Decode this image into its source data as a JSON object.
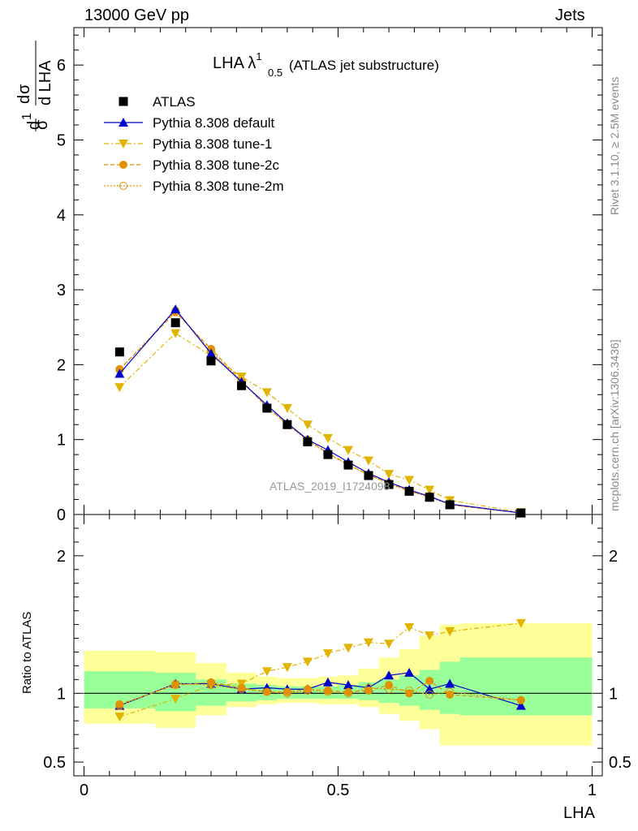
{
  "header": {
    "energy": "13000 GeV pp",
    "process": "Jets"
  },
  "side": {
    "rivet": "Rivet 3.1.10, ≥ 2.5M events",
    "source": "mcplots.cern.ch [arXiv:1306.3436]"
  },
  "chart_data": [
    {
      "type": "line",
      "title": "LHA λ",
      "title_sup": "1",
      "title_sub": "0.5",
      "subtitle": "(ATLAS jet substructure)",
      "watermark": "ATLAS_2019_I1724098",
      "xlim": [
        -0.02,
        1.02
      ],
      "ylim": [
        0,
        6.5
      ],
      "yticks": [
        "0",
        "1",
        "2",
        "3",
        "4",
        "5",
        "6"
      ],
      "ylabel": "1/σ dσ/d LHA",
      "legend_position": "top-left",
      "series": [
        {
          "name": "ATLAS",
          "color": "#000000",
          "x": [
            0.07,
            0.18,
            0.25,
            0.31,
            0.36,
            0.4,
            0.44,
            0.48,
            0.52,
            0.56,
            0.6,
            0.64,
            0.68,
            0.72,
            0.86
          ],
          "y": [
            2.17,
            2.56,
            2.05,
            1.72,
            1.42,
            1.2,
            0.97,
            0.8,
            0.66,
            0.52,
            0.4,
            0.31,
            0.23,
            0.13,
            0.02
          ]
        },
        {
          "name": "Pythia 8.308 default",
          "color": "#0000cc",
          "x": [
            0.07,
            0.18,
            0.25,
            0.31,
            0.36,
            0.4,
            0.44,
            0.48,
            0.52,
            0.56,
            0.6,
            0.64,
            0.68,
            0.72,
            0.86
          ],
          "y": [
            1.88,
            2.74,
            2.15,
            1.77,
            1.46,
            1.22,
            1.0,
            0.86,
            0.7,
            0.55,
            0.43,
            0.33,
            0.24,
            0.14,
            0.02
          ]
        },
        {
          "name": "Pythia 8.308 tune-1",
          "color": "#e0b400",
          "x": [
            0.07,
            0.18,
            0.25,
            0.31,
            0.36,
            0.4,
            0.44,
            0.48,
            0.52,
            0.56,
            0.6,
            0.64,
            0.68,
            0.72,
            0.86
          ],
          "y": [
            1.7,
            2.42,
            2.12,
            1.84,
            1.63,
            1.42,
            1.2,
            1.02,
            0.86,
            0.72,
            0.54,
            0.46,
            0.33,
            0.19,
            0.03
          ]
        },
        {
          "name": "Pythia 8.308 tune-2c",
          "color": "#e09000",
          "x": [
            0.07,
            0.18,
            0.25,
            0.31,
            0.36,
            0.4,
            0.44,
            0.48,
            0.52,
            0.56,
            0.6,
            0.64,
            0.68,
            0.72,
            0.86
          ],
          "y": [
            1.94,
            2.7,
            2.21,
            1.79,
            1.43,
            1.21,
            1.0,
            0.82,
            0.67,
            0.53,
            0.42,
            0.31,
            0.25,
            0.13,
            0.02
          ]
        },
        {
          "name": "Pythia 8.308 tune-2m",
          "color": "#e09000",
          "x": [
            0.07,
            0.18,
            0.25,
            0.31,
            0.36,
            0.4,
            0.44,
            0.48,
            0.52,
            0.56,
            0.6,
            0.64,
            0.68,
            0.72,
            0.86
          ],
          "y": [
            1.93,
            2.72,
            2.18,
            1.78,
            1.43,
            1.2,
            0.99,
            0.81,
            0.66,
            0.53,
            0.41,
            0.31,
            0.23,
            0.13,
            0.02
          ]
        }
      ]
    },
    {
      "type": "line",
      "ylabel": "Ratio to ATLAS",
      "xlabel": "LHA",
      "xlim": [
        -0.02,
        1.02
      ],
      "ylim": [
        0.4,
        2.3
      ],
      "xticks": [
        "0",
        "0.5",
        "1"
      ],
      "yticks": [
        "0.5",
        "1",
        "2"
      ],
      "uncertainty_bands": {
        "edges": [
          0.0,
          0.14,
          0.22,
          0.28,
          0.34,
          0.38,
          0.42,
          0.46,
          0.5,
          0.54,
          0.58,
          0.62,
          0.66,
          0.7,
          0.74,
          1.0
        ],
        "inner_lo": [
          0.89,
          0.87,
          0.91,
          0.94,
          0.95,
          0.96,
          0.96,
          0.96,
          0.96,
          0.95,
          0.93,
          0.91,
          0.88,
          0.85,
          0.84
        ],
        "inner_hi": [
          1.16,
          1.15,
          1.1,
          1.07,
          1.06,
          1.05,
          1.05,
          1.05,
          1.06,
          1.08,
          1.1,
          1.13,
          1.17,
          1.23,
          1.26
        ],
        "outer_lo": [
          0.78,
          0.75,
          0.84,
          0.9,
          0.92,
          0.93,
          0.93,
          0.92,
          0.92,
          0.9,
          0.85,
          0.8,
          0.74,
          0.62,
          0.62
        ],
        "outer_hi": [
          1.31,
          1.3,
          1.22,
          1.15,
          1.12,
          1.11,
          1.11,
          1.12,
          1.13,
          1.18,
          1.26,
          1.32,
          1.42,
          1.5,
          1.51
        ],
        "inner_color": "#99ff99",
        "outer_color": "#ffff99"
      },
      "series": [
        {
          "name": "Pythia 8.308 default",
          "color": "#0000cc",
          "x": [
            0.07,
            0.18,
            0.25,
            0.31,
            0.36,
            0.4,
            0.44,
            0.48,
            0.52,
            0.56,
            0.6,
            0.64,
            0.68,
            0.72,
            0.86
          ],
          "y": [
            0.91,
            1.07,
            1.07,
            1.03,
            1.04,
            1.03,
            1.03,
            1.08,
            1.06,
            1.04,
            1.13,
            1.15,
            1.03,
            1.07,
            0.91
          ]
        },
        {
          "name": "Pythia 8.308 tune-1",
          "color": "#e0b400",
          "x": [
            0.07,
            0.18,
            0.25,
            0.31,
            0.36,
            0.4,
            0.44,
            0.48,
            0.52,
            0.56,
            0.6,
            0.64,
            0.68,
            0.72,
            0.86
          ],
          "y": [
            0.83,
            0.96,
            1.06,
            1.07,
            1.16,
            1.19,
            1.23,
            1.29,
            1.33,
            1.37,
            1.36,
            1.48,
            1.42,
            1.45,
            1.51
          ]
        },
        {
          "name": "Pythia 8.308 tune-2c",
          "color": "#e09000",
          "x": [
            0.07,
            0.18,
            0.25,
            0.31,
            0.36,
            0.4,
            0.44,
            0.48,
            0.52,
            0.56,
            0.6,
            0.64,
            0.68,
            0.72,
            0.86
          ],
          "y": [
            0.92,
            1.06,
            1.08,
            1.04,
            1.01,
            1.01,
            1.03,
            1.02,
            1.01,
            1.02,
            1.06,
            1.0,
            1.09,
            0.99,
            0.95
          ]
        },
        {
          "name": "Pythia 8.308 tune-2m",
          "color": "#e09000",
          "x": [
            0.07,
            0.18,
            0.25,
            0.31,
            0.36,
            0.4,
            0.44,
            0.48,
            0.52,
            0.56,
            0.6,
            0.64,
            0.68,
            0.72,
            0.86
          ],
          "y": [
            0.91,
            1.07,
            1.06,
            1.03,
            1.01,
            1.0,
            1.02,
            1.01,
            1.0,
            1.04,
            1.03,
            1.02,
            0.99,
            1.01,
            0.95
          ]
        }
      ]
    }
  ]
}
